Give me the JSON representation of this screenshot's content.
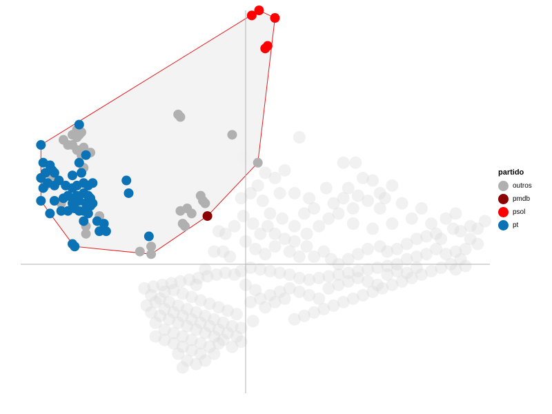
{
  "chart_data": {
    "type": "scatter",
    "title": "",
    "xlabel": "",
    "ylabel": "",
    "xlim": [
      -1.0,
      1.0
    ],
    "ylim": [
      -0.75,
      1.0
    ],
    "grid": false,
    "axes_lines_at_zero": true,
    "legend": {
      "title": "partido",
      "placement": "right",
      "entries": [
        {
          "label": "outros",
          "color": "#b0b0b0"
        },
        {
          "label": "pmdb",
          "color": "#8b0000"
        },
        {
          "label": "psol",
          "color": "#ff0000"
        },
        {
          "label": "pt",
          "color": "#0a72b5"
        }
      ]
    },
    "hull": {
      "stroke": "#e41a1c",
      "fill": "#f2f2f2"
    },
    "background_color": "#d8d8d8",
    "highlighted_series": [
      {
        "name": "psol",
        "color": "#ff0000",
        "points": [
          [
            0.025,
            0.98
          ],
          [
            0.055,
            1.0
          ],
          [
            0.12,
            0.97
          ],
          [
            0.08,
            0.85
          ],
          [
            0.09,
            0.86
          ]
        ]
      },
      {
        "name": "pmdb",
        "color": "#8b0000",
        "points": [
          [
            -0.17,
            0.19
          ]
        ]
      },
      {
        "name": "pt",
        "color": "#0a72b5",
        "points": [
          [
            -0.74,
            0.55
          ],
          [
            -0.91,
            0.47
          ],
          [
            -0.9,
            0.4
          ],
          [
            -0.87,
            0.39
          ],
          [
            -0.89,
            0.36
          ],
          [
            -0.86,
            0.37
          ],
          [
            -0.91,
            0.34
          ],
          [
            -0.85,
            0.36
          ],
          [
            -0.88,
            0.32
          ],
          [
            -0.83,
            0.33
          ],
          [
            -0.9,
            0.3
          ],
          [
            -0.85,
            0.31
          ],
          [
            -0.8,
            0.31
          ],
          [
            -0.77,
            0.3
          ],
          [
            -0.75,
            0.31
          ],
          [
            -0.72,
            0.32
          ],
          [
            -0.7,
            0.31
          ],
          [
            -0.68,
            0.32
          ],
          [
            -0.91,
            0.25
          ],
          [
            -0.85,
            0.25
          ],
          [
            -0.81,
            0.26
          ],
          [
            -0.79,
            0.27
          ],
          [
            -0.77,
            0.26
          ],
          [
            -0.75,
            0.27
          ],
          [
            -0.72,
            0.28
          ],
          [
            -0.7,
            0.27
          ],
          [
            -0.69,
            0.26
          ],
          [
            -0.77,
            0.24
          ],
          [
            -0.74,
            0.25
          ],
          [
            -0.71,
            0.24
          ],
          [
            -0.69,
            0.23
          ],
          [
            -0.68,
            0.24
          ],
          [
            -0.87,
            0.2
          ],
          [
            -0.82,
            0.21
          ],
          [
            -0.79,
            0.21
          ],
          [
            -0.76,
            0.22
          ],
          [
            -0.74,
            0.21
          ],
          [
            -0.72,
            0.21
          ],
          [
            -0.7,
            0.2
          ],
          [
            -0.72,
            0.17
          ],
          [
            -0.74,
            0.4
          ],
          [
            -0.71,
            0.43
          ],
          [
            -0.73,
            0.36
          ],
          [
            -0.77,
            0.35
          ],
          [
            -0.66,
            0.17
          ],
          [
            -0.63,
            0.16
          ],
          [
            -0.65,
            0.13
          ],
          [
            -0.62,
            0.13
          ],
          [
            -0.53,
            0.33
          ],
          [
            -0.52,
            0.28
          ],
          [
            -0.43,
            0.11
          ],
          [
            -0.76,
            0.07
          ],
          [
            -0.77,
            0.08
          ]
        ]
      },
      {
        "name": "outros",
        "color": "#b0b0b0",
        "points": [
          [
            -0.3,
            0.59
          ],
          [
            -0.29,
            0.58
          ],
          [
            -0.06,
            0.51
          ],
          [
            -0.75,
            0.53
          ],
          [
            -0.74,
            0.51
          ],
          [
            -0.77,
            0.51
          ],
          [
            -0.81,
            0.49
          ],
          [
            -0.75,
            0.5
          ],
          [
            -0.73,
            0.52
          ],
          [
            -0.77,
            0.47
          ],
          [
            -0.79,
            0.47
          ],
          [
            -0.72,
            0.46
          ],
          [
            -0.73,
            0.43
          ],
          [
            -0.69,
            0.44
          ],
          [
            -0.75,
            0.45
          ],
          [
            -0.72,
            0.38
          ],
          [
            -0.29,
            0.21
          ],
          [
            -0.26,
            0.22
          ],
          [
            -0.2,
            0.27
          ],
          [
            -0.19,
            0.25
          ],
          [
            -0.24,
            0.2
          ],
          [
            -0.28,
            0.16
          ],
          [
            -0.27,
            0.15
          ],
          [
            -0.18,
            0.24
          ],
          [
            -0.65,
            0.19
          ],
          [
            -0.71,
            0.15
          ],
          [
            -0.71,
            0.12
          ],
          [
            -0.86,
            0.34
          ],
          [
            -0.89,
            0.31
          ],
          [
            -0.82,
            0.24
          ],
          [
            -0.42,
            0.07
          ],
          [
            -0.47,
            0.05
          ],
          [
            0.05,
            0.4
          ],
          [
            -0.42,
            0.04
          ]
        ]
      }
    ],
    "background_points": [
      [
        0.22,
        0.5
      ],
      [
        0.16,
        0.37
      ],
      [
        -0.01,
        0.42
      ],
      [
        0.05,
        0.31
      ],
      [
        0.12,
        0.34
      ],
      [
        0.07,
        0.25
      ],
      [
        0.2,
        0.28
      ],
      [
        0.26,
        0.26
      ],
      [
        0.33,
        0.3
      ],
      [
        0.4,
        0.4
      ],
      [
        0.45,
        0.4
      ],
      [
        0.48,
        0.34
      ],
      [
        0.52,
        0.33
      ],
      [
        0.55,
        0.28
      ],
      [
        0.57,
        0.26
      ],
      [
        0.6,
        0.31
      ],
      [
        0.55,
        0.22
      ],
      [
        0.5,
        0.25
      ],
      [
        0.46,
        0.27
      ],
      [
        0.42,
        0.3
      ],
      [
        0.4,
        0.26
      ],
      [
        0.38,
        0.2
      ],
      [
        0.34,
        0.18
      ],
      [
        0.3,
        0.15
      ],
      [
        0.25,
        0.12
      ],
      [
        0.2,
        0.09
      ],
      [
        0.16,
        0.1
      ],
      [
        0.12,
        0.12
      ],
      [
        0.09,
        0.15
      ],
      [
        0.06,
        0.12
      ],
      [
        0.03,
        0.16
      ],
      [
        -0.01,
        0.19
      ],
      [
        -0.05,
        0.15
      ],
      [
        -0.09,
        0.12
      ],
      [
        -0.12,
        0.13
      ],
      [
        -0.14,
        0.05
      ],
      [
        -0.07,
        0.03
      ],
      [
        0.0,
        0.09
      ],
      [
        0.04,
        0.06
      ],
      [
        0.08,
        0.04
      ],
      [
        0.12,
        0.07
      ],
      [
        0.18,
        0.05
      ],
      [
        0.22,
        0.03
      ],
      [
        0.25,
        0.07
      ],
      [
        0.28,
        0.03
      ],
      [
        0.32,
        0.05
      ],
      [
        0.35,
        0.02
      ],
      [
        0.38,
        0.0
      ],
      [
        0.42,
        0.02
      ],
      [
        0.46,
        0.04
      ],
      [
        0.5,
        0.06
      ],
      [
        0.55,
        0.07
      ],
      [
        0.58,
        0.05
      ],
      [
        0.62,
        0.06
      ],
      [
        0.66,
        0.08
      ],
      [
        0.7,
        0.1
      ],
      [
        0.74,
        0.11
      ],
      [
        0.78,
        0.12
      ],
      [
        0.8,
        0.1
      ],
      [
        0.85,
        0.14
      ],
      [
        0.88,
        0.13
      ],
      [
        0.92,
        0.15
      ],
      [
        0.95,
        0.14
      ],
      [
        0.98,
        0.17
      ],
      [
        0.95,
        0.08
      ],
      [
        0.9,
        0.06
      ],
      [
        0.86,
        0.05
      ],
      [
        0.82,
        0.04
      ],
      [
        0.78,
        0.06
      ],
      [
        0.74,
        0.04
      ],
      [
        0.7,
        0.03
      ],
      [
        0.66,
        0.02
      ],
      [
        0.62,
        0.0
      ],
      [
        0.58,
        -0.01
      ],
      [
        0.54,
        -0.02
      ],
      [
        0.5,
        -0.03
      ],
      [
        0.46,
        -0.04
      ],
      [
        0.42,
        -0.05
      ],
      [
        0.38,
        -0.06
      ],
      [
        0.34,
        -0.07
      ],
      [
        0.3,
        -0.08
      ],
      [
        0.26,
        -0.09
      ],
      [
        0.22,
        -0.08
      ],
      [
        0.18,
        -0.06
      ],
      [
        0.14,
        -0.05
      ],
      [
        0.1,
        -0.04
      ],
      [
        0.06,
        -0.03
      ],
      [
        0.02,
        -0.02
      ],
      [
        -0.02,
        -0.04
      ],
      [
        -0.05,
        -0.06
      ],
      [
        -0.09,
        -0.05
      ],
      [
        -0.13,
        -0.06
      ],
      [
        -0.17,
        -0.07
      ],
      [
        -0.21,
        -0.08
      ],
      [
        -0.25,
        -0.09
      ],
      [
        -0.29,
        -0.1
      ],
      [
        -0.33,
        -0.11
      ],
      [
        -0.37,
        -0.12
      ],
      [
        -0.41,
        -0.13
      ],
      [
        -0.45,
        -0.14
      ],
      [
        -0.42,
        -0.18
      ],
      [
        -0.38,
        -0.2
      ],
      [
        -0.34,
        -0.22
      ],
      [
        -0.3,
        -0.24
      ],
      [
        -0.26,
        -0.26
      ],
      [
        -0.22,
        -0.28
      ],
      [
        -0.18,
        -0.3
      ],
      [
        -0.14,
        -0.32
      ],
      [
        -0.1,
        -0.34
      ],
      [
        -0.06,
        -0.36
      ],
      [
        -0.02,
        -0.37
      ],
      [
        0.03,
        -0.33
      ],
      [
        -0.04,
        -0.29
      ],
      [
        -0.08,
        -0.27
      ],
      [
        -0.12,
        -0.25
      ],
      [
        -0.16,
        -0.23
      ],
      [
        -0.2,
        -0.21
      ],
      [
        -0.24,
        -0.19
      ],
      [
        -0.28,
        -0.17
      ],
      [
        -0.32,
        -0.15
      ],
      [
        -0.36,
        -0.16
      ],
      [
        -0.4,
        -0.22
      ],
      [
        -0.36,
        -0.26
      ],
      [
        -0.32,
        -0.28
      ],
      [
        -0.28,
        -0.3
      ],
      [
        -0.24,
        -0.32
      ],
      [
        -0.2,
        -0.34
      ],
      [
        -0.16,
        -0.36
      ],
      [
        -0.12,
        -0.38
      ],
      [
        -0.08,
        -0.4
      ],
      [
        -0.04,
        -0.42
      ],
      [
        -0.1,
        -0.44
      ],
      [
        -0.14,
        -0.42
      ],
      [
        -0.18,
        -0.4
      ],
      [
        -0.22,
        -0.38
      ],
      [
        -0.26,
        -0.36
      ],
      [
        -0.3,
        -0.34
      ],
      [
        -0.34,
        -0.32
      ],
      [
        -0.38,
        -0.3
      ],
      [
        -0.42,
        -0.28
      ],
      [
        -0.44,
        -0.24
      ],
      [
        -0.4,
        -0.34
      ],
      [
        -0.36,
        -0.38
      ],
      [
        -0.32,
        -0.4
      ],
      [
        -0.28,
        -0.42
      ],
      [
        -0.24,
        -0.44
      ],
      [
        -0.2,
        -0.46
      ],
      [
        -0.16,
        -0.48
      ],
      [
        -0.2,
        -0.52
      ],
      [
        -0.24,
        -0.5
      ],
      [
        -0.28,
        -0.48
      ],
      [
        -0.32,
        -0.46
      ],
      [
        -0.36,
        -0.44
      ],
      [
        -0.4,
        -0.42
      ],
      [
        -0.3,
        -0.52
      ],
      [
        -0.26,
        -0.56
      ],
      [
        -0.22,
        -0.58
      ],
      [
        -0.28,
        -0.6
      ],
      [
        -0.18,
        -0.56
      ],
      [
        -0.14,
        -0.52
      ],
      [
        -0.12,
        -0.46
      ],
      [
        -0.06,
        -0.48
      ],
      [
        -0.02,
        -0.45
      ],
      [
        0.2,
        -0.32
      ],
      [
        0.24,
        -0.3
      ],
      [
        0.28,
        -0.28
      ],
      [
        0.32,
        -0.26
      ],
      [
        0.36,
        -0.24
      ],
      [
        0.4,
        -0.22
      ],
      [
        0.44,
        -0.2
      ],
      [
        0.48,
        -0.18
      ],
      [
        0.52,
        -0.16
      ],
      [
        0.56,
        -0.14
      ],
      [
        0.6,
        -0.12
      ],
      [
        0.64,
        -0.1
      ],
      [
        0.68,
        -0.08
      ],
      [
        0.72,
        -0.06
      ],
      [
        0.76,
        -0.04
      ],
      [
        0.8,
        -0.02
      ],
      [
        0.84,
        0.0
      ],
      [
        0.88,
        0.02
      ],
      [
        0.9,
        -0.01
      ],
      [
        0.86,
        -0.03
      ],
      [
        0.3,
        -0.2
      ],
      [
        0.26,
        -0.18
      ],
      [
        0.22,
        -0.16
      ],
      [
        0.18,
        -0.14
      ],
      [
        0.14,
        -0.16
      ],
      [
        0.1,
        -0.18
      ],
      [
        0.06,
        -0.2
      ],
      [
        0.02,
        -0.22
      ],
      [
        0.08,
        -0.25
      ],
      [
        0.12,
        -0.22
      ],
      [
        0.16,
        -0.2
      ],
      [
        0.04,
        -0.15
      ],
      [
        0.0,
        -0.12
      ],
      [
        0.34,
        -0.14
      ],
      [
        0.38,
        -0.12
      ],
      [
        0.42,
        -0.1
      ],
      [
        0.46,
        -0.08
      ],
      [
        0.5,
        -0.1
      ],
      [
        0.54,
        -0.12
      ],
      [
        0.58,
        -0.06
      ],
      [
        0.62,
        -0.04
      ],
      [
        0.66,
        -0.05
      ],
      [
        0.7,
        -0.02
      ],
      [
        -0.1,
        0.05
      ],
      [
        -0.18,
        -0.03
      ],
      [
        -0.22,
        -0.12
      ],
      [
        0.1,
        0.2
      ],
      [
        0.15,
        0.18
      ],
      [
        0.24,
        0.2
      ],
      [
        0.28,
        0.22
      ],
      [
        0.36,
        0.24
      ],
      [
        0.44,
        0.16
      ],
      [
        0.52,
        0.14
      ],
      [
        0.6,
        0.16
      ],
      [
        0.68,
        0.18
      ],
      [
        0.76,
        0.16
      ],
      [
        0.82,
        0.18
      ],
      [
        0.86,
        0.2
      ],
      [
        0.92,
        0.1
      ],
      [
        0.72,
        0.22
      ],
      [
        0.64,
        0.24
      ],
      [
        0.44,
        0.22
      ],
      [
        0.2,
        0.15
      ],
      [
        0.14,
        0.28
      ],
      [
        0.02,
        0.28
      ],
      [
        0.08,
        0.36
      ],
      [
        -0.02,
        0.26
      ]
    ]
  }
}
